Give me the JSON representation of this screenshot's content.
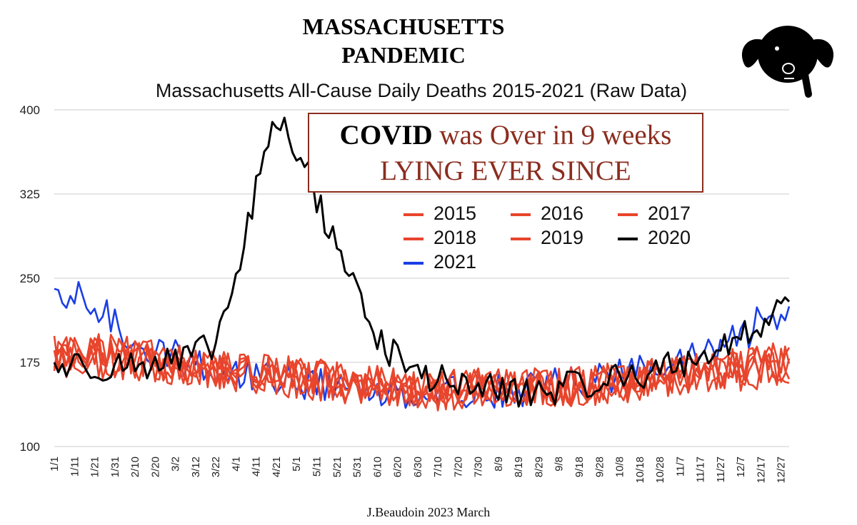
{
  "heading": {
    "line1": "MASSACHUSETTS",
    "line2": "PANDEMIC"
  },
  "callout": {
    "covid": "COVID",
    "rest": " was Over in 9 weeks",
    "line2": "LYING EVER SINCE"
  },
  "credit": "J.Beaudoin   2023 March",
  "logo_icon": "dog-head-icon",
  "chart_data": {
    "type": "line",
    "title": "Massachusetts All-Cause Daily Deaths 2015-2021 (Raw Data)",
    "xlabel": "",
    "ylabel": "",
    "ylim": [
      100,
      400
    ],
    "yticks": [
      100,
      175,
      250,
      325,
      400
    ],
    "grid": true,
    "legend_position": "upper-right",
    "x_tick_labels": [
      "1/1",
      "1/11",
      "1/21",
      "1/31",
      "2/10",
      "2/20",
      "3/2",
      "3/12",
      "3/22",
      "4/1",
      "4/11",
      "4/21",
      "5/1",
      "5/11",
      "5/21",
      "5/31",
      "6/10",
      "6/20",
      "6/30",
      "7/10",
      "7/20",
      "7/30",
      "8/9",
      "8/19",
      "8/29",
      "9/8",
      "9/18",
      "9/28",
      "10/8",
      "10/18",
      "10/28",
      "11/7",
      "11/17",
      "11/27",
      "12/7",
      "12/17",
      "12/27"
    ],
    "series": [
      {
        "name": "2015",
        "color": "#e8452c",
        "key_points": [
          [
            1,
            178
          ],
          [
            30,
            176
          ],
          [
            60,
            172
          ],
          [
            90,
            165
          ],
          [
            120,
            160
          ],
          [
            150,
            155
          ],
          [
            180,
            150
          ],
          [
            210,
            150
          ],
          [
            240,
            150
          ],
          [
            270,
            153
          ],
          [
            300,
            160
          ],
          [
            330,
            165
          ],
          [
            365,
            172
          ]
        ]
      },
      {
        "name": "2016",
        "color": "#e8452c",
        "key_points": [
          [
            1,
            182
          ],
          [
            30,
            178
          ],
          [
            60,
            173
          ],
          [
            90,
            166
          ],
          [
            120,
            161
          ],
          [
            150,
            156
          ],
          [
            180,
            151
          ],
          [
            210,
            150
          ],
          [
            240,
            151
          ],
          [
            270,
            154
          ],
          [
            300,
            160
          ],
          [
            330,
            166
          ],
          [
            365,
            175
          ]
        ]
      },
      {
        "name": "2017",
        "color": "#e8452c",
        "key_points": [
          [
            1,
            185
          ],
          [
            30,
            180
          ],
          [
            60,
            174
          ],
          [
            90,
            168
          ],
          [
            120,
            162
          ],
          [
            150,
            157
          ],
          [
            180,
            152
          ],
          [
            210,
            151
          ],
          [
            240,
            152
          ],
          [
            270,
            155
          ],
          [
            300,
            161
          ],
          [
            330,
            167
          ],
          [
            365,
            174
          ]
        ]
      },
      {
        "name": "2018",
        "color": "#e8452c",
        "key_points": [
          [
            1,
            186
          ],
          [
            30,
            182
          ],
          [
            60,
            175
          ],
          [
            90,
            167
          ],
          [
            120,
            162
          ],
          [
            150,
            157
          ],
          [
            180,
            152
          ],
          [
            210,
            152
          ],
          [
            240,
            152
          ],
          [
            270,
            155
          ],
          [
            300,
            162
          ],
          [
            330,
            168
          ],
          [
            365,
            176
          ]
        ]
      },
      {
        "name": "2019",
        "color": "#e8452c",
        "key_points": [
          [
            1,
            180
          ],
          [
            30,
            178
          ],
          [
            60,
            172
          ],
          [
            90,
            166
          ],
          [
            120,
            160
          ],
          [
            150,
            155
          ],
          [
            180,
            151
          ],
          [
            210,
            150
          ],
          [
            240,
            151
          ],
          [
            270,
            155
          ],
          [
            300,
            161
          ],
          [
            330,
            167
          ],
          [
            365,
            175
          ]
        ]
      },
      {
        "name": "2020",
        "color": "#000000",
        "key_points": [
          [
            1,
            172
          ],
          [
            30,
            172
          ],
          [
            60,
            175
          ],
          [
            70,
            180
          ],
          [
            80,
            190
          ],
          [
            90,
            240
          ],
          [
            100,
            320
          ],
          [
            106,
            370
          ],
          [
            112,
            390
          ],
          [
            118,
            375
          ],
          [
            125,
            350
          ],
          [
            132,
            315
          ],
          [
            140,
            285
          ],
          [
            148,
            250
          ],
          [
            155,
            220
          ],
          [
            162,
            195
          ],
          [
            170,
            180
          ],
          [
            180,
            165
          ],
          [
            210,
            152
          ],
          [
            240,
            148
          ],
          [
            270,
            158
          ],
          [
            300,
            168
          ],
          [
            320,
            180
          ],
          [
            340,
            195
          ],
          [
            350,
            205
          ],
          [
            358,
            225
          ],
          [
            365,
            235
          ]
        ]
      },
      {
        "name": "2021",
        "color": "#1a3ee6",
        "key_points": [
          [
            1,
            225
          ],
          [
            12,
            232
          ],
          [
            21,
            225
          ],
          [
            30,
            210
          ],
          [
            40,
            195
          ],
          [
            60,
            180
          ],
          [
            90,
            165
          ],
          [
            120,
            158
          ],
          [
            150,
            152
          ],
          [
            180,
            150
          ],
          [
            210,
            150
          ],
          [
            240,
            152
          ],
          [
            270,
            160
          ],
          [
            300,
            170
          ],
          [
            320,
            180
          ],
          [
            340,
            195
          ],
          [
            350,
            210
          ],
          [
            358,
            215
          ],
          [
            365,
            218
          ]
        ]
      }
    ]
  }
}
